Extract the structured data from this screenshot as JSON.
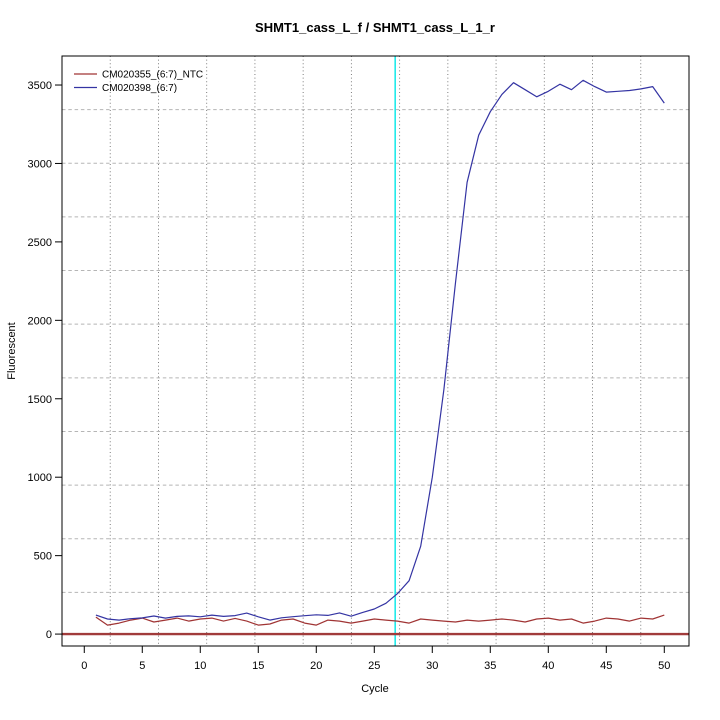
{
  "chart_data": {
    "type": "line",
    "title": "SHMT1_cass_L_f / SHMT1_cass_L_1_r",
    "xlabel": "Cycle",
    "ylabel": "Fluorescent",
    "x_ticks": [
      0,
      5,
      10,
      15,
      20,
      25,
      30,
      35,
      40,
      45,
      50
    ],
    "y_ticks": [
      0,
      500,
      1000,
      1500,
      2000,
      2500,
      3000,
      3500
    ],
    "xlim": [
      -1.92,
      52.13
    ],
    "ylim": [
      -76,
      3685
    ],
    "grid": {
      "vertical_divisions": 13,
      "horizontal_divisions": 11,
      "v_color": "#6f6f6f",
      "h_color": "#b5b5b5"
    },
    "threshold_cycle_line": {
      "cycle": 26.8,
      "color": "#00E6E6"
    },
    "zero_line": {
      "value": 0,
      "color": "#A13B3B"
    },
    "legend_position": "top-left",
    "x": [
      1,
      2,
      3,
      4,
      5,
      6,
      7,
      8,
      9,
      10,
      11,
      12,
      13,
      14,
      15,
      16,
      17,
      18,
      19,
      20,
      21,
      22,
      23,
      24,
      25,
      26,
      27,
      28,
      29,
      30,
      31,
      32,
      33,
      34,
      35,
      36,
      37,
      38,
      39,
      40,
      41,
      42,
      43,
      44,
      45,
      46,
      47,
      48,
      49,
      50
    ],
    "series": [
      {
        "name": "CM020355_(6:7)_NTC",
        "color": "#A03434",
        "values": [
          108,
          57,
          70,
          89,
          102,
          77,
          89,
          102,
          83,
          96,
          102,
          83,
          100,
          83,
          57,
          64,
          89,
          96,
          70,
          57,
          89,
          83,
          70,
          83,
          96,
          89,
          83,
          70,
          96,
          89,
          83,
          77,
          89,
          83,
          89,
          96,
          89,
          77,
          96,
          102,
          89,
          96,
          70,
          83,
          102,
          96,
          83,
          102,
          96,
          121
        ]
      },
      {
        "name": "CM020398_(6:7)",
        "color": "#3434A3",
        "values": [
          121,
          96,
          89,
          98,
          103,
          115,
          102,
          113,
          116,
          110,
          121,
          113,
          118,
          134,
          110,
          89,
          104,
          111,
          117,
          123,
          119,
          135,
          114,
          138,
          160,
          196,
          258,
          340,
          560,
          1000,
          1560,
          2240,
          2880,
          3180,
          3330,
          3440,
          3515,
          3470,
          3425,
          3460,
          3505,
          3470,
          3530,
          3490,
          3455,
          3460,
          3465,
          3475,
          3490,
          3385
        ]
      }
    ]
  }
}
